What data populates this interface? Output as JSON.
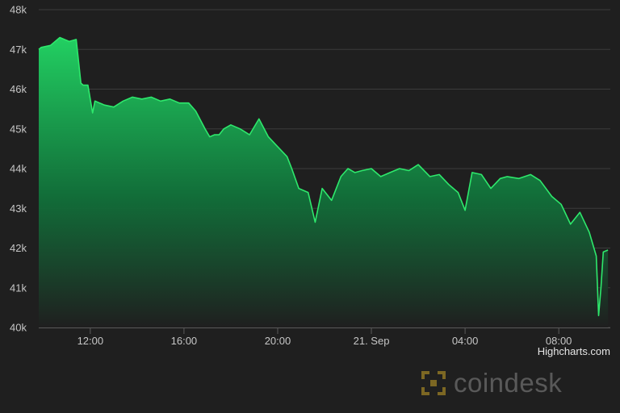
{
  "chart_data": {
    "type": "area",
    "x_ticks": [
      "12:00",
      "16:00",
      "20:00",
      "21. Sep",
      "04:00",
      "08:00"
    ],
    "y_ticks": [
      "40k",
      "41k",
      "42k",
      "43k",
      "44k",
      "45k",
      "46k",
      "47k",
      "48k"
    ],
    "ylim": [
      40000,
      48000
    ],
    "xlim_hours": [
      -2.2,
      22.2
    ],
    "grid": true,
    "series": [
      {
        "color": "#2ee86c",
        "x": [
          -2.2,
          -2.1,
          -1.7,
          -1.3,
          -0.9,
          -0.6,
          -0.4,
          -0.3,
          -0.1,
          0.1,
          0.2,
          0.4,
          0.6,
          1.0,
          1.4,
          1.8,
          2.2,
          2.6,
          3.0,
          3.4,
          3.8,
          4.2,
          4.5,
          4.9,
          5.1,
          5.3,
          5.5,
          5.7,
          6.0,
          6.4,
          6.8,
          7.2,
          7.6,
          8.0,
          8.4,
          8.6,
          8.9,
          9.3,
          9.6,
          9.9,
          10.3,
          10.7,
          11.0,
          11.3,
          11.6,
          12.0,
          12.4,
          12.8,
          13.2,
          13.6,
          14.0,
          14.5,
          14.9,
          15.3,
          15.7,
          16.0,
          16.3,
          16.7,
          17.1,
          17.5,
          17.8,
          18.3,
          18.8,
          19.2,
          19.7,
          20.1,
          20.5,
          20.9,
          21.3,
          21.6,
          21.7,
          21.8,
          21.9,
          22.1
        ],
        "values": [
          47000,
          47050,
          47100,
          47300,
          47200,
          47250,
          46150,
          46100,
          46100,
          45400,
          45700,
          45650,
          45600,
          45550,
          45700,
          45800,
          45750,
          45800,
          45700,
          45750,
          45650,
          45650,
          45450,
          45000,
          44800,
          44850,
          44850,
          45000,
          45100,
          45000,
          44850,
          45250,
          44800,
          44550,
          44300,
          44000,
          43500,
          43400,
          42650,
          43500,
          43200,
          43800,
          44000,
          43900,
          43950,
          44000,
          43800,
          43900,
          44000,
          43950,
          44100,
          43800,
          43850,
          43600,
          43400,
          42950,
          43900,
          43850,
          43500,
          43750,
          43800,
          43750,
          43850,
          43700,
          43300,
          43100,
          42600,
          42900,
          42400,
          41800,
          40300,
          41000,
          41900,
          41950
        ]
      }
    ]
  },
  "credits": "Highcharts.com",
  "watermark": {
    "text": "coindesk",
    "color": "#c9a227"
  }
}
